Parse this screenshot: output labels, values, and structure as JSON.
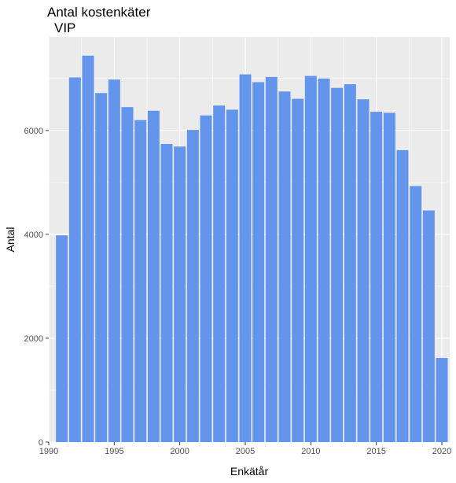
{
  "chart_data": {
    "type": "bar",
    "title": "Antal kostenkäter",
    "subtitle": "VIP",
    "xlabel": "Enkätår",
    "ylabel": "Antal",
    "color": "#6495ED",
    "panel_background": "#EBEBEB",
    "grid": true,
    "xlim": [
      1990,
      2020.6
    ],
    "ylim": [
      0,
      7800
    ],
    "x_ticks": [
      1990,
      1995,
      2000,
      2005,
      2010,
      2015,
      2020
    ],
    "y_ticks": [
      0,
      2000,
      4000,
      6000
    ],
    "x": [
      1991,
      1992,
      1993,
      1994,
      1995,
      1996,
      1997,
      1998,
      1999,
      2000,
      2001,
      2002,
      2003,
      2004,
      2005,
      2006,
      2007,
      2008,
      2009,
      2010,
      2011,
      2012,
      2013,
      2014,
      2015,
      2016,
      2017,
      2018,
      2019,
      2020
    ],
    "values": [
      3980,
      7020,
      7440,
      6720,
      6980,
      6450,
      6200,
      6380,
      5740,
      5690,
      6010,
      6290,
      6480,
      6400,
      7080,
      6930,
      7030,
      6750,
      6610,
      7050,
      7000,
      6820,
      6890,
      6600,
      6360,
      6340,
      5620,
      4930,
      4460,
      1620
    ]
  }
}
